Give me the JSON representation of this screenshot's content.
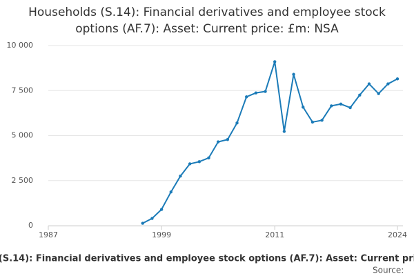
{
  "chart_data": {
    "type": "line",
    "title": "Households (S.14): Financial derivatives and employee stock options (AF.7): Asset: Current price: £m: NSA",
    "x": [
      1997,
      1998,
      1999,
      2000,
      2001,
      2002,
      2003,
      2004,
      2005,
      2006,
      2007,
      2008,
      2009,
      2010,
      2011,
      2012,
      2013,
      2014,
      2015,
      2016,
      2017,
      2018,
      2019,
      2020,
      2021,
      2022,
      2023,
      2024
    ],
    "series": [
      {
        "name": "Households (S.14): Financial derivatives and employee stock options (AF.7): Asset: Current price: £m: NSA",
        "color": "#1b7bb8",
        "values": [
          130,
          400,
          900,
          1870,
          2750,
          3430,
          3550,
          3760,
          4650,
          4780,
          5700,
          7150,
          7370,
          7450,
          9100,
          5230,
          8400,
          6580,
          5750,
          5850,
          6650,
          6750,
          6550,
          7250,
          7870,
          7330,
          7870,
          8150
        ]
      }
    ],
    "xlim": [
      1987,
      2024
    ],
    "xticks": [
      1987,
      1999,
      2011,
      2024
    ],
    "ylim": [
      0,
      10000
    ],
    "yticks": [
      0,
      {
        "value": 2500,
        "label": "2 500"
      },
      {
        "value": 5000,
        "label": "5 000"
      },
      {
        "value": 7500,
        "label": "7 500"
      },
      {
        "value": 10000,
        "label": "10 000"
      }
    ],
    "grid": true,
    "source": "Source:"
  }
}
